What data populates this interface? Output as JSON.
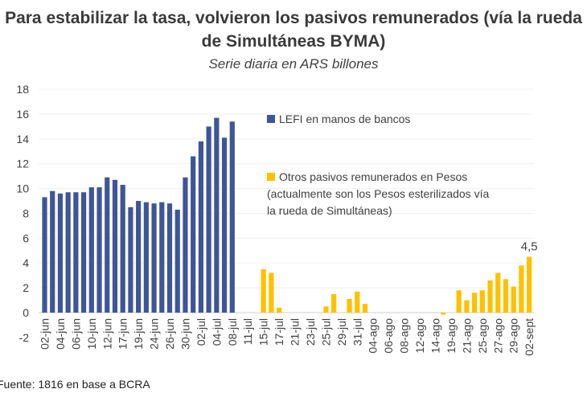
{
  "chart_data": {
    "type": "bar",
    "title": "Para estabilizar la tasa, volvieron los pasivos remunerados (vía la rueda de Simultáneas BYMA)",
    "subtitle": "Serie diaria  en ARS billones",
    "ylim": [
      -2,
      18
    ],
    "yticks": [
      -2,
      0,
      2,
      4,
      6,
      8,
      10,
      12,
      14,
      16,
      18
    ],
    "grid": true,
    "legend_position": "right",
    "categories": [
      "02-jun",
      "",
      "04-jun",
      "",
      "06-jun",
      "",
      "10-jun",
      "",
      "12-jun",
      "",
      "17-jun",
      "",
      "19-jun",
      "",
      "24-jun",
      "",
      "26-jun",
      "",
      "30-jun",
      "",
      "02-jul",
      "",
      "04-jul",
      "",
      "08-jul",
      "",
      "11-jul",
      "",
      "15-jul",
      "",
      "17-jul",
      "",
      "21-jul",
      "",
      "23-jul",
      "",
      "25-jul",
      "",
      "29-jul",
      "",
      "31-jul",
      "",
      "04-ago",
      "",
      "06-ago",
      "",
      "08-ago",
      "",
      "12-ago",
      "",
      "14-ago",
      "",
      "19-ago",
      "",
      "21-ago",
      "",
      "25-ago",
      "",
      "27-ago",
      "",
      "29-ago",
      "",
      "02-sept"
    ],
    "series": [
      {
        "name": "LEFI en manos de bancos",
        "color": "#3F5597",
        "values": [
          9.3,
          9.8,
          9.6,
          9.7,
          9.7,
          9.7,
          10.1,
          10.1,
          10.9,
          10.7,
          10.3,
          8.5,
          9.0,
          8.9,
          8.8,
          8.9,
          8.8,
          8.3,
          10.9,
          12.6,
          13.8,
          15.0,
          15.7,
          14.1,
          15.4,
          null,
          null,
          null,
          null,
          null,
          null,
          null,
          null,
          null,
          null,
          null,
          null,
          null,
          null,
          null,
          null,
          null,
          null,
          null,
          null,
          null,
          null,
          null,
          null,
          null,
          null,
          null,
          null,
          null,
          null,
          null,
          null,
          null,
          null,
          null,
          null,
          null,
          null
        ]
      },
      {
        "name": "Otros pasivos remunerados en Pesos (actualmente son los Pesos esterilizados vía la rueda de Simultáneas)",
        "legend_lines": [
          "Otros pasivos remunerados en Pesos",
          "(actualmente son los Pesos esterilizados vía",
          "la rueda de Simultáneas)"
        ],
        "color": "#FFC000",
        "values": [
          null,
          null,
          null,
          null,
          null,
          null,
          null,
          null,
          null,
          null,
          null,
          null,
          null,
          null,
          null,
          null,
          null,
          null,
          null,
          null,
          null,
          null,
          null,
          null,
          null,
          0,
          0,
          0,
          3.5,
          3.2,
          0.4,
          0,
          0,
          0,
          0,
          0,
          0.5,
          1.5,
          0,
          1.1,
          1.7,
          0.7,
          0,
          0,
          0,
          0,
          0,
          0,
          0,
          0,
          0,
          -0.15,
          0,
          1.8,
          1.0,
          1.6,
          1.8,
          2.6,
          3.2,
          2.7,
          2.1,
          3.8,
          4.5
        ]
      }
    ],
    "annotations": [
      {
        "text": "4,5",
        "category_index": 62
      }
    ]
  },
  "footer": "Fuente: 1816 en base a BCRA"
}
